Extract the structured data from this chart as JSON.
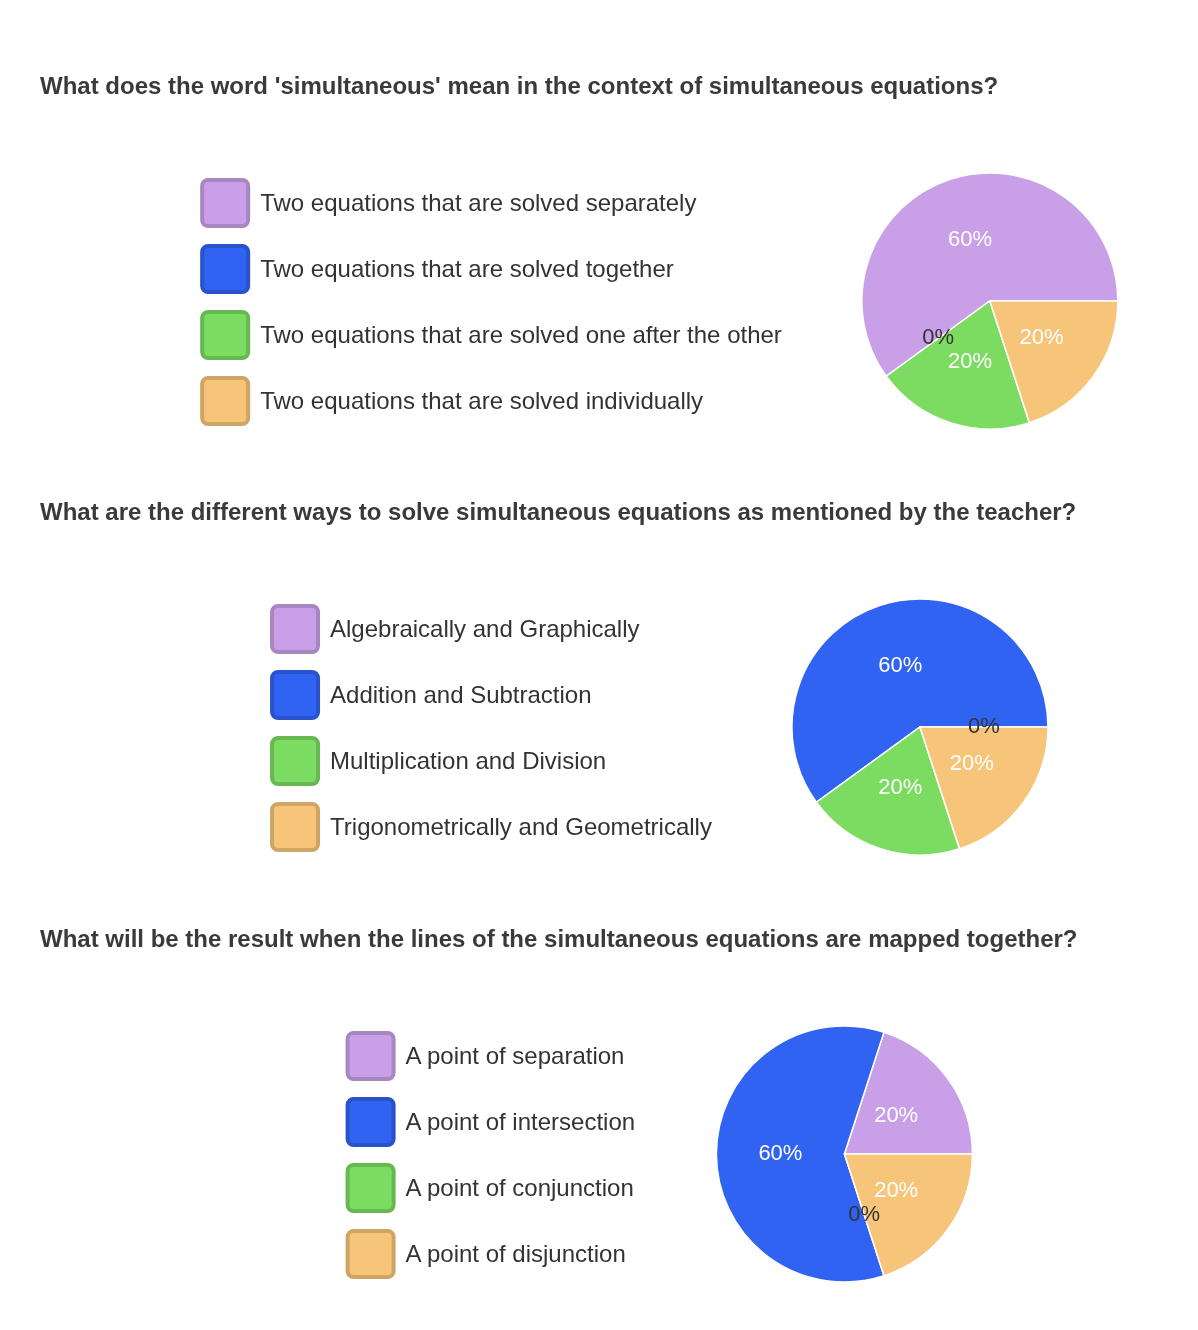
{
  "chart_data": [
    {
      "type": "pie",
      "title": "What does the word 'simultaneous' mean in the context of simultaneous equations?",
      "categories": [
        "Two equations that are solved separately",
        "Two equations that are solved together",
        "Two equations that are solved one after the other",
        "Two equations that are solved individually"
      ],
      "values": [
        60,
        0,
        20,
        20
      ],
      "colors": [
        "#c9a0e8",
        "#3063f2",
        "#7bdc61",
        "#f6c579"
      ],
      "value_labels": [
        "60%",
        "0%",
        "20%",
        "20%"
      ],
      "legend": "left"
    },
    {
      "type": "pie",
      "title": "What are the different ways to solve simultaneous equations as mentioned by the teacher?",
      "categories": [
        "Algebraically and Graphically",
        "Addition and Subtraction",
        "Multiplication and Division",
        "Trigonometrically and Geometrically"
      ],
      "values": [
        0,
        60,
        20,
        20
      ],
      "colors": [
        "#c9a0e8",
        "#3063f2",
        "#7bdc61",
        "#f6c579"
      ],
      "value_labels": [
        "0%",
        "60%",
        "20%",
        "20%"
      ],
      "legend": "left"
    },
    {
      "type": "pie",
      "title": "What will be the result when the lines of the simultaneous equations are mapped together?",
      "categories": [
        "A point of separation",
        "A point of intersection",
        "A point of conjunction",
        "A point of disjunction"
      ],
      "values": [
        20,
        60,
        0,
        20
      ],
      "colors": [
        "#c9a0e8",
        "#3063f2",
        "#7bdc61",
        "#f6c579"
      ],
      "value_labels": [
        "20%",
        "60%",
        "0%",
        "20%"
      ],
      "legend": "left"
    }
  ]
}
